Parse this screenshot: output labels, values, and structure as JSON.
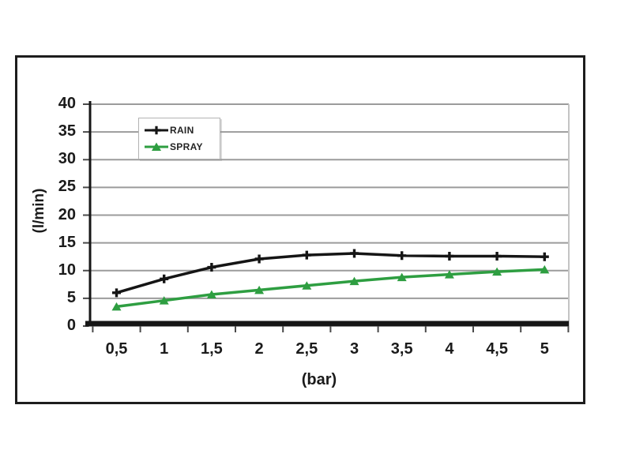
{
  "chart_data": {
    "type": "line",
    "title": "",
    "xlabel": "(bar)",
    "ylabel": "(l/min)",
    "x": [
      0.5,
      1,
      1.5,
      2,
      2.5,
      3,
      3.5,
      4,
      4.5,
      5
    ],
    "x_labels": [
      "0,5",
      "1",
      "1,5",
      "2",
      "2,5",
      "3",
      "3,5",
      "4",
      "4,5",
      "5"
    ],
    "y_ticks": [
      0,
      5,
      10,
      15,
      20,
      25,
      30,
      35,
      40
    ],
    "ylim": [
      0,
      40
    ],
    "grid": "horizontal",
    "legend_position": "top-left-inside",
    "series": [
      {
        "name": "RAIN",
        "marker": "plus",
        "color": "#151515",
        "values": [
          6,
          8.5,
          10.6,
          12.1,
          12.8,
          13.1,
          12.7,
          12.6,
          12.6,
          12.5
        ]
      },
      {
        "name": "SPRAY",
        "marker": "triangle-up",
        "color": "#2e9e41",
        "values": [
          3.5,
          4.6,
          5.7,
          6.5,
          7.3,
          8.1,
          8.8,
          9.3,
          9.8,
          10.2
        ]
      }
    ]
  },
  "colors": {
    "background": "#ffffff",
    "frame_border": "#1d1d1d",
    "gridline": "#9b9b9b",
    "plot_right_border": "#c4c4c4",
    "axis": "#161616",
    "tick_text": "#1b1b1b",
    "legend_border": "#b3b3b3"
  }
}
